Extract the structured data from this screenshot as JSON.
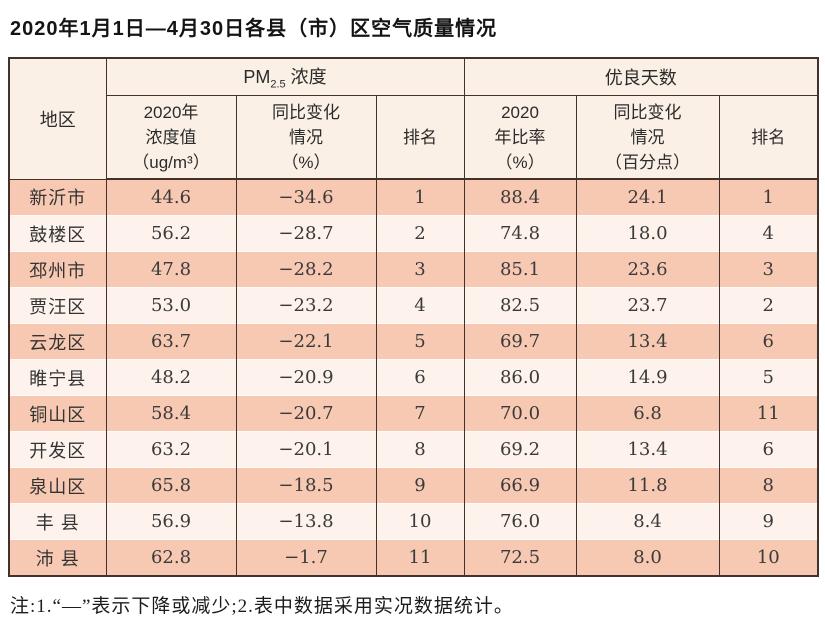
{
  "title": "2020年1月1日—4月30日各县（市）区空气质量情况",
  "note": "注:1.“—”表示下降或减少;2.表中数据采用实况数据统计。",
  "table": {
    "header": {
      "region": "地区",
      "pm_main": "PM",
      "pm_sub": "2.5",
      "pm_rest": "浓度",
      "good_days": "优良天数"
    },
    "sub_headers": [
      {
        "lines": [
          "2020年",
          "浓度值",
          "（ug/m³）"
        ]
      },
      {
        "lines": [
          "同比变化",
          "情况",
          "（%）"
        ]
      },
      {
        "lines": [
          "排名"
        ]
      },
      {
        "lines": [
          "2020",
          "年比率",
          "（%）"
        ]
      },
      {
        "lines": [
          "同比变化",
          "情况",
          "（百分点）"
        ]
      },
      {
        "lines": [
          "排名"
        ]
      }
    ],
    "rows": [
      {
        "region": "新沂市",
        "pm_value": "44.6",
        "pm_change": "−34.6",
        "pm_rank": "1",
        "good_ratio": "88.4",
        "good_change": "24.1",
        "good_rank": "1"
      },
      {
        "region": "鼓楼区",
        "pm_value": "56.2",
        "pm_change": "−28.7",
        "pm_rank": "2",
        "good_ratio": "74.8",
        "good_change": "18.0",
        "good_rank": "4"
      },
      {
        "region": "邳州市",
        "pm_value": "47.8",
        "pm_change": "−28.2",
        "pm_rank": "3",
        "good_ratio": "85.1",
        "good_change": "23.6",
        "good_rank": "3"
      },
      {
        "region": "贾汪区",
        "pm_value": "53.0",
        "pm_change": "−23.2",
        "pm_rank": "4",
        "good_ratio": "82.5",
        "good_change": "23.7",
        "good_rank": "2"
      },
      {
        "region": "云龙区",
        "pm_value": "63.7",
        "pm_change": "−22.1",
        "pm_rank": "5",
        "good_ratio": "69.7",
        "good_change": "13.4",
        "good_rank": "6"
      },
      {
        "region": "睢宁县",
        "pm_value": "48.2",
        "pm_change": "−20.9",
        "pm_rank": "6",
        "good_ratio": "86.0",
        "good_change": "14.9",
        "good_rank": "5"
      },
      {
        "region": "铜山区",
        "pm_value": "58.4",
        "pm_change": "−20.7",
        "pm_rank": "7",
        "good_ratio": "70.0",
        "good_change": "6.8",
        "good_rank": "11"
      },
      {
        "region": "开发区",
        "pm_value": "63.2",
        "pm_change": "−20.1",
        "pm_rank": "8",
        "good_ratio": "69.2",
        "good_change": "13.4",
        "good_rank": "6"
      },
      {
        "region": "泉山区",
        "pm_value": "65.8",
        "pm_change": "−18.5",
        "pm_rank": "9",
        "good_ratio": "66.9",
        "good_change": "11.8",
        "good_rank": "8"
      },
      {
        "region": "丰 县",
        "pm_value": "56.9",
        "pm_change": "−13.8",
        "pm_rank": "10",
        "good_ratio": "76.0",
        "good_change": "8.4",
        "good_rank": "9"
      },
      {
        "region": "沛 县",
        "pm_value": "62.8",
        "pm_change": "−1.7",
        "pm_rank": "11",
        "good_ratio": "72.5",
        "good_change": "8.0",
        "good_rank": "10"
      }
    ]
  }
}
